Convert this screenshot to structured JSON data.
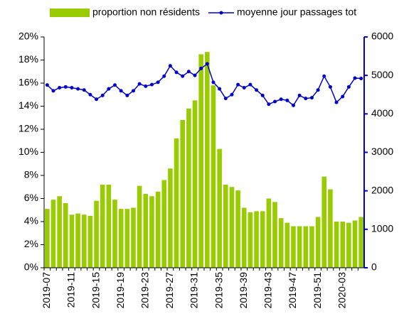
{
  "chart_data": {
    "type": "bar-line",
    "categories": [
      "2019-07",
      null,
      null,
      null,
      "2019-11",
      null,
      null,
      null,
      "2019-15",
      null,
      null,
      null,
      "2019-19",
      null,
      null,
      null,
      "2019-23",
      null,
      null,
      null,
      "2019-27",
      null,
      null,
      null,
      "2019-31",
      null,
      null,
      null,
      "2019-35",
      null,
      null,
      null,
      "2019-39",
      null,
      null,
      null,
      "2019-43",
      null,
      null,
      null,
      "2019-47",
      null,
      null,
      null,
      "2019-51",
      null,
      null,
      null,
      "2020-03",
      null,
      null,
      null
    ],
    "series": [
      {
        "name": "proportion non résidents",
        "type": "bar",
        "color": "#99cc00",
        "values": [
          5.1,
          5.9,
          6.2,
          5.6,
          4.6,
          4.7,
          4.6,
          4.5,
          5.8,
          7.2,
          7.2,
          5.9,
          5.1,
          5.1,
          5.2,
          7.1,
          6.4,
          6.2,
          6.6,
          7.6,
          8.6,
          11.2,
          12.8,
          13.8,
          14.5,
          18.5,
          18.7,
          15.8,
          10.3,
          7.2,
          7.0,
          6.7,
          5.2,
          4.8,
          4.9,
          4.9,
          6.0,
          5.7,
          4.3,
          3.9,
          3.6,
          3.6,
          3.6,
          3.6,
          4.4,
          7.9,
          6.8,
          4.0,
          4.0,
          3.9,
          4.1,
          4.4
        ]
      },
      {
        "name": "moyenne jour passages tot",
        "type": "line",
        "axis": "y2",
        "color": "#0000cc",
        "values": [
          4750,
          4600,
          4680,
          4700,
          4680,
          4650,
          4620,
          4500,
          4380,
          4480,
          4650,
          4750,
          4600,
          4480,
          4600,
          4780,
          4720,
          4760,
          4820,
          4980,
          5250,
          5080,
          4980,
          5100,
          5000,
          5180,
          5300,
          4820,
          4650,
          4400,
          4500,
          4760,
          4680,
          4760,
          4620,
          4480,
          4250,
          4320,
          4380,
          4350,
          4220,
          4480,
          4400,
          4420,
          4620,
          4980,
          4700,
          4300,
          4450,
          4700,
          4930,
          4920
        ]
      }
    ],
    "ylim": [
      0,
      20
    ],
    "yticks": [
      {
        "value": 0,
        "label": "0%"
      },
      {
        "value": 2,
        "label": "2%"
      },
      {
        "value": 4,
        "label": "4%"
      },
      {
        "value": 6,
        "label": "6%"
      },
      {
        "value": 8,
        "label": "8%"
      },
      {
        "value": 10,
        "label": "10%"
      },
      {
        "value": 12,
        "label": "12%"
      },
      {
        "value": 14,
        "label": "14%"
      },
      {
        "value": 16,
        "label": "16%"
      },
      {
        "value": 18,
        "label": "18%"
      },
      {
        "value": 20,
        "label": "20%"
      }
    ],
    "y2lim": [
      0,
      6000
    ],
    "y2ticks": [
      0,
      1000,
      2000,
      3000,
      4000,
      5000,
      6000
    ],
    "legend": "top"
  }
}
